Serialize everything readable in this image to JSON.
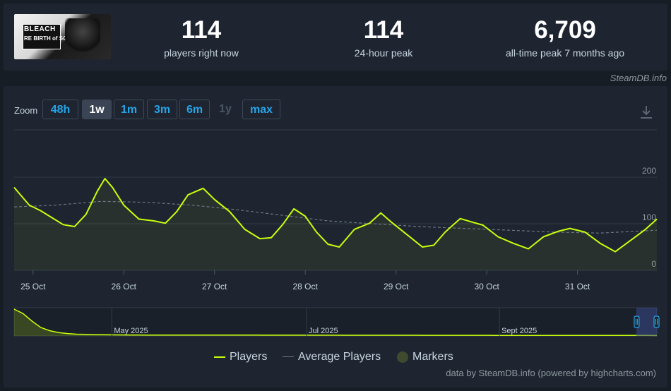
{
  "header": {
    "logo_text": "BLEACH",
    "logo_text_2": "RE BIRTH of SOULS",
    "stats": [
      {
        "value": "114",
        "label": "players right now"
      },
      {
        "value": "114",
        "label": "24-hour peak"
      },
      {
        "value": "6,709",
        "label": "all-time peak 7 months ago"
      }
    ],
    "credit": "SteamDB.info"
  },
  "zoom": {
    "label": "Zoom",
    "buttons": [
      "48h",
      "1w",
      "1m",
      "3m",
      "6m",
      "1y",
      "max"
    ],
    "active": "1w",
    "disabled": [
      "1y"
    ]
  },
  "legend": {
    "players": "Players",
    "average": "Average Players",
    "markers": "Markers"
  },
  "footer_credit": "data by SteamDB.info (powered by highcharts.com)",
  "colors": {
    "players_line": "#c8ff0a",
    "average_line": "#6c7682",
    "marker_fill": "#3f4a2e",
    "background": "#1e2530",
    "accent": "#26a4e8"
  },
  "chart_data": {
    "type": "line",
    "title": "",
    "xlabel": "",
    "ylabel": "",
    "x_range": [
      "2025-10-24T19:00",
      "2025-10-31T21:00"
    ],
    "ylim": [
      0,
      200
    ],
    "y_ticks": [
      "200",
      "100",
      "0"
    ],
    "x_ticks": [
      "25 Oct",
      "26 Oct",
      "27 Oct",
      "28 Oct",
      "29 Oct",
      "30 Oct",
      "31 Oct"
    ],
    "grid": true,
    "series": [
      {
        "name": "Players",
        "points": [
          [
            "2025-10-24T19:00",
            178
          ],
          [
            "2025-10-24T23:00",
            140
          ],
          [
            "2025-10-25T02:00",
            128
          ],
          [
            "2025-10-25T05:00",
            113
          ],
          [
            "2025-10-25T08:00",
            98
          ],
          [
            "2025-10-25T11:00",
            94
          ],
          [
            "2025-10-25T14:00",
            120
          ],
          [
            "2025-10-25T17:00",
            170
          ],
          [
            "2025-10-25T19:00",
            197
          ],
          [
            "2025-10-25T21:00",
            178
          ],
          [
            "2025-10-26T00:00",
            140
          ],
          [
            "2025-10-26T04:00",
            110
          ],
          [
            "2025-10-26T08:00",
            106
          ],
          [
            "2025-10-26T11:00",
            101
          ],
          [
            "2025-10-26T14:00",
            126
          ],
          [
            "2025-10-26T17:00",
            162
          ],
          [
            "2025-10-26T21:00",
            176
          ],
          [
            "2025-10-27T00:00",
            152
          ],
          [
            "2025-10-27T04:00",
            126
          ],
          [
            "2025-10-27T08:00",
            88
          ],
          [
            "2025-10-27T12:00",
            68
          ],
          [
            "2025-10-27T15:00",
            70
          ],
          [
            "2025-10-27T18:00",
            98
          ],
          [
            "2025-10-27T21:00",
            132
          ],
          [
            "2025-10-28T00:00",
            116
          ],
          [
            "2025-10-28T03:00",
            82
          ],
          [
            "2025-10-28T06:00",
            56
          ],
          [
            "2025-10-28T09:00",
            50
          ],
          [
            "2025-10-28T13:00",
            88
          ],
          [
            "2025-10-28T17:00",
            101
          ],
          [
            "2025-10-28T20:00",
            123
          ],
          [
            "2025-10-28T23:00",
            102
          ],
          [
            "2025-10-29T03:00",
            76
          ],
          [
            "2025-10-29T07:00",
            50
          ],
          [
            "2025-10-29T10:00",
            54
          ],
          [
            "2025-10-29T13:00",
            82
          ],
          [
            "2025-10-29T17:00",
            111
          ],
          [
            "2025-10-29T20:00",
            104
          ],
          [
            "2025-10-29T23:00",
            97
          ],
          [
            "2025-10-30T03:00",
            72
          ],
          [
            "2025-10-30T07:00",
            58
          ],
          [
            "2025-10-30T11:00",
            46
          ],
          [
            "2025-10-30T15:00",
            72
          ],
          [
            "2025-10-30T19:00",
            84
          ],
          [
            "2025-10-30T22:00",
            90
          ],
          [
            "2025-10-31T02:00",
            82
          ],
          [
            "2025-10-31T06:00",
            58
          ],
          [
            "2025-10-31T10:00",
            40
          ],
          [
            "2025-10-31T14:00",
            64
          ],
          [
            "2025-10-31T18:00",
            88
          ],
          [
            "2025-10-31T21:00",
            110
          ]
        ]
      },
      {
        "name": "Average Players",
        "points": [
          [
            "2025-10-24T19:00",
            136
          ],
          [
            "2025-10-25T06:00",
            140
          ],
          [
            "2025-10-25T18:00",
            148
          ],
          [
            "2025-10-26T06:00",
            146
          ],
          [
            "2025-10-26T18:00",
            140
          ],
          [
            "2025-10-27T06:00",
            130
          ],
          [
            "2025-10-27T18:00",
            118
          ],
          [
            "2025-10-28T06:00",
            106
          ],
          [
            "2025-10-28T18:00",
            100
          ],
          [
            "2025-10-29T06:00",
            94
          ],
          [
            "2025-10-29T18:00",
            90
          ],
          [
            "2025-10-30T06:00",
            86
          ],
          [
            "2025-10-30T18:00",
            82
          ],
          [
            "2025-10-31T06:00",
            80
          ],
          [
            "2025-10-31T21:00",
            86
          ]
        ]
      }
    ],
    "navigator": {
      "labels": [
        "May 2025",
        "Jul 2025",
        "Sept 2025"
      ],
      "values": [
        6709,
        5600,
        3700,
        2100,
        1300,
        850,
        600,
        450,
        380,
        330,
        300,
        280,
        260,
        250,
        240,
        235,
        230,
        228,
        225,
        222,
        220,
        218,
        215,
        213,
        210,
        208,
        206,
        204,
        202,
        200,
        198,
        196,
        194,
        192,
        190,
        188,
        186,
        184,
        182,
        180,
        178,
        176,
        174,
        172,
        170,
        168,
        166,
        164,
        162,
        160,
        158,
        156,
        154,
        152,
        150,
        148,
        146,
        144,
        142,
        140,
        138,
        136,
        134,
        132,
        130,
        128,
        126,
        124,
        122,
        120,
        118,
        116,
        114
      ],
      "selected_range": [
        0.968,
        1.0
      ]
    }
  }
}
